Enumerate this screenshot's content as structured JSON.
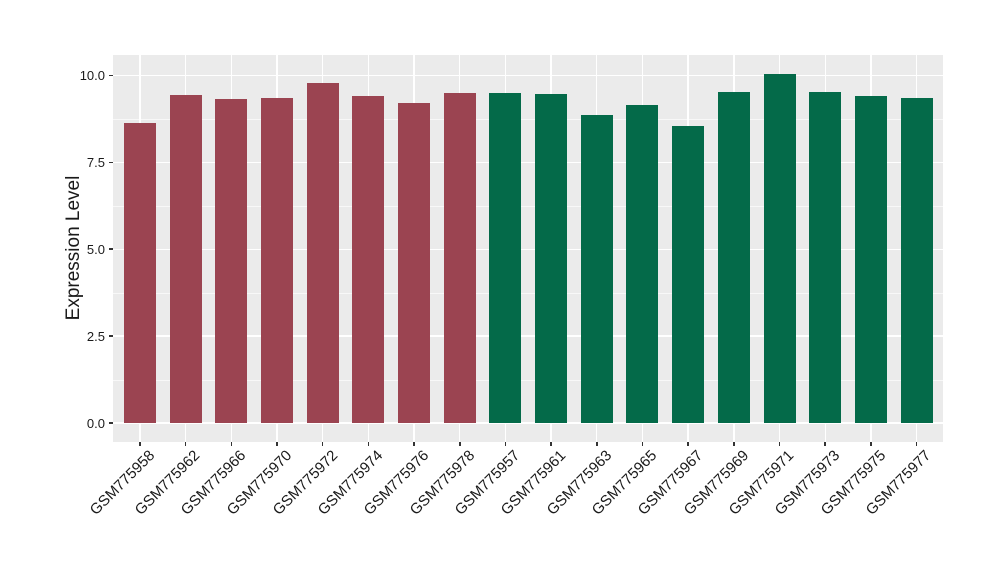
{
  "chart_data": {
    "type": "bar",
    "title": "",
    "xlabel": "",
    "ylabel": "Expression Level",
    "ylim": [
      0,
      10.6
    ],
    "y_ticks": [
      {
        "value": 0,
        "label": "0.0"
      },
      {
        "value": 2.5,
        "label": "2.5"
      },
      {
        "value": 5,
        "label": "5.0"
      },
      {
        "value": 7.5,
        "label": "7.5"
      },
      {
        "value": 10,
        "label": "10.0"
      }
    ],
    "y_minor_ticks": [
      1.25,
      3.75,
      6.25,
      8.75
    ],
    "grid": "white major and minor horizontal lines, white vertical lines at category centers, on gray panel",
    "legend_position": "none",
    "x_tick_label_angle": 45,
    "series": [
      {
        "name": "maroon-group",
        "color": "#9B4451",
        "categories": [
          "GSM775958",
          "GSM775962",
          "GSM775966",
          "GSM775970",
          "GSM775972",
          "GSM775974",
          "GSM775976",
          "GSM775978"
        ],
        "values": [
          8.63,
          9.44,
          9.31,
          9.36,
          9.79,
          9.42,
          9.21,
          9.48
        ]
      },
      {
        "name": "green-group",
        "color": "#046A49",
        "categories": [
          "GSM775957",
          "GSM775961",
          "GSM775963",
          "GSM775965",
          "GSM775967",
          "GSM775969",
          "GSM775971",
          "GSM775973",
          "GSM775975",
          "GSM775977"
        ],
        "values": [
          9.5,
          9.47,
          8.87,
          9.16,
          8.55,
          9.52,
          10.03,
          9.52,
          9.41,
          9.34
        ]
      }
    ],
    "colors": {
      "panel_background": "#EBEBEB",
      "gridline": "#FFFFFF",
      "figure_background": "#FFFFFF",
      "axis_text": "#1A1A1A",
      "tick_mark": "#333333"
    }
  }
}
